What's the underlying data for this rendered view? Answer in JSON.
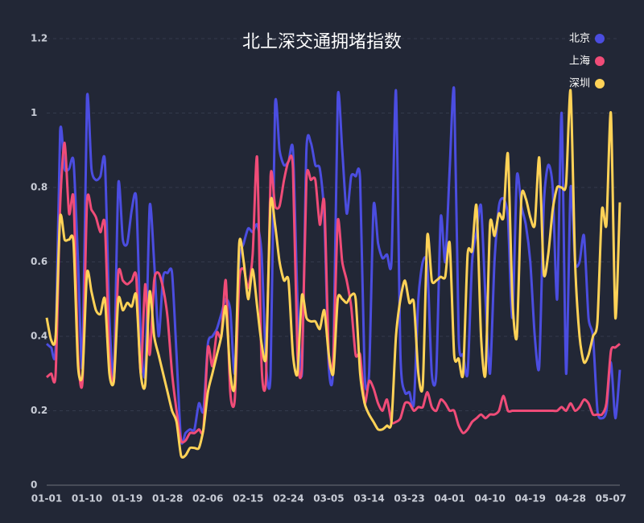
{
  "chart_data": {
    "type": "line",
    "title": "北上深交通拥堵指数",
    "categories": [
      "01-01",
      null,
      null,
      null,
      null,
      null,
      null,
      null,
      null,
      "01-10",
      null,
      null,
      null,
      null,
      null,
      null,
      null,
      null,
      "01-19",
      null,
      null,
      null,
      null,
      null,
      null,
      null,
      null,
      "01-28",
      null,
      null,
      null,
      null,
      null,
      null,
      null,
      null,
      "02-06",
      null,
      null,
      null,
      null,
      null,
      null,
      null,
      null,
      "02-15",
      null,
      null,
      null,
      null,
      null,
      null,
      null,
      null,
      "02-24",
      null,
      null,
      null,
      null,
      null,
      null,
      null,
      null,
      "03-05",
      null,
      null,
      null,
      null,
      null,
      null,
      null,
      null,
      "03-14",
      null,
      null,
      null,
      null,
      null,
      null,
      null,
      null,
      "03-23",
      null,
      null,
      null,
      null,
      null,
      null,
      null,
      null,
      "04-01",
      null,
      null,
      null,
      null,
      null,
      null,
      null,
      null,
      "04-10",
      null,
      null,
      null,
      null,
      null,
      null,
      null,
      null,
      "04-19",
      null,
      null,
      null,
      null,
      null,
      null,
      null,
      null,
      "04-28",
      null,
      null,
      null,
      null,
      null,
      null,
      null,
      null,
      "05-07",
      null,
      null
    ],
    "series": [
      {
        "name": "北京",
        "color": "#4b4de0",
        "values": [
          0.38,
          0.37,
          0.37,
          0.95,
          0.85,
          0.85,
          0.87,
          0.6,
          0.32,
          1.04,
          0.85,
          0.82,
          0.83,
          0.87,
          0.45,
          0.3,
          0.81,
          0.66,
          0.65,
          0.74,
          0.77,
          0.4,
          0.3,
          0.75,
          0.6,
          0.4,
          0.56,
          0.57,
          0.57,
          0.35,
          0.12,
          0.14,
          0.15,
          0.15,
          0.22,
          0.2,
          0.38,
          0.4,
          0.42,
          0.46,
          0.5,
          0.47,
          0.3,
          0.6,
          0.65,
          0.69,
          0.68,
          0.7,
          0.62,
          0.32,
          0.3,
          1.02,
          0.9,
          0.86,
          0.87,
          0.9,
          0.5,
          0.3,
          0.9,
          0.92,
          0.86,
          0.85,
          0.72,
          0.32,
          0.32,
          1.04,
          0.9,
          0.73,
          0.83,
          0.83,
          0.82,
          0.3,
          0.3,
          0.75,
          0.65,
          0.61,
          0.62,
          0.6,
          1.06,
          0.35,
          0.25,
          0.25,
          0.22,
          0.5,
          0.6,
          0.59,
          0.3,
          0.3,
          0.72,
          0.6,
          0.85,
          1.06,
          0.4,
          0.35,
          0.3,
          0.6,
          0.68,
          0.75,
          0.5,
          0.3,
          0.6,
          0.75,
          0.77,
          0.72,
          0.45,
          0.83,
          0.75,
          0.7,
          0.6,
          0.4,
          0.32,
          0.75,
          0.86,
          0.8,
          0.5,
          1.0,
          0.3,
          0.8,
          0.6,
          0.6,
          0.67,
          0.45,
          0.4,
          0.2,
          0.18,
          0.2,
          0.33,
          0.18,
          0.31
        ]
      },
      {
        "name": "上海",
        "color": "#f04c78",
        "values": [
          0.29,
          0.3,
          0.3,
          0.75,
          0.92,
          0.73,
          0.77,
          0.35,
          0.28,
          0.76,
          0.74,
          0.72,
          0.68,
          0.7,
          0.35,
          0.28,
          0.57,
          0.55,
          0.54,
          0.55,
          0.56,
          0.3,
          0.54,
          0.35,
          0.55,
          0.57,
          0.53,
          0.45,
          0.3,
          0.2,
          0.12,
          0.12,
          0.14,
          0.14,
          0.15,
          0.15,
          0.37,
          0.32,
          0.41,
          0.4,
          0.55,
          0.25,
          0.23,
          0.55,
          0.58,
          0.53,
          0.62,
          0.88,
          0.32,
          0.29,
          0.83,
          0.75,
          0.75,
          0.82,
          0.87,
          0.85,
          0.35,
          0.32,
          0.82,
          0.82,
          0.82,
          0.7,
          0.76,
          0.35,
          0.34,
          0.71,
          0.6,
          0.55,
          0.48,
          0.35,
          0.35,
          0.22,
          0.28,
          0.26,
          0.22,
          0.2,
          0.23,
          0.17,
          0.17,
          0.18,
          0.22,
          0.22,
          0.2,
          0.21,
          0.21,
          0.25,
          0.21,
          0.2,
          0.23,
          0.22,
          0.2,
          0.2,
          0.16,
          0.14,
          0.15,
          0.17,
          0.18,
          0.19,
          0.18,
          0.19,
          0.19,
          0.2,
          0.24,
          0.2,
          0.2,
          0.2,
          0.2,
          0.2,
          0.2,
          0.2,
          0.2,
          0.2,
          0.2,
          0.2,
          0.2,
          0.21,
          0.2,
          0.22,
          0.2,
          0.21,
          0.23,
          0.22,
          0.19,
          0.19,
          0.19,
          0.22,
          0.36,
          0.37,
          0.38
        ]
      },
      {
        "name": "深圳",
        "color": "#ffd257",
        "values": [
          0.45,
          0.39,
          0.4,
          0.72,
          0.66,
          0.66,
          0.65,
          0.32,
          0.3,
          0.57,
          0.52,
          0.47,
          0.46,
          0.5,
          0.3,
          0.28,
          0.5,
          0.47,
          0.49,
          0.48,
          0.51,
          0.3,
          0.27,
          0.52,
          0.4,
          0.35,
          0.3,
          0.25,
          0.2,
          0.17,
          0.08,
          0.08,
          0.1,
          0.1,
          0.1,
          0.15,
          0.25,
          0.3,
          0.35,
          0.4,
          0.48,
          0.3,
          0.27,
          0.65,
          0.6,
          0.5,
          0.58,
          0.48,
          0.38,
          0.35,
          0.76,
          0.7,
          0.6,
          0.55,
          0.55,
          0.35,
          0.3,
          0.51,
          0.45,
          0.44,
          0.44,
          0.42,
          0.47,
          0.35,
          0.3,
          0.5,
          0.5,
          0.49,
          0.51,
          0.5,
          0.3,
          0.22,
          0.19,
          0.17,
          0.15,
          0.15,
          0.16,
          0.17,
          0.4,
          0.5,
          0.55,
          0.49,
          0.49,
          0.3,
          0.27,
          0.67,
          0.55,
          0.55,
          0.56,
          0.56,
          0.65,
          0.35,
          0.34,
          0.3,
          0.62,
          0.63,
          0.75,
          0.4,
          0.3,
          0.7,
          0.67,
          0.73,
          0.72,
          0.89,
          0.5,
          0.4,
          0.77,
          0.77,
          0.72,
          0.7,
          0.88,
          0.57,
          0.62,
          0.74,
          0.8,
          0.8,
          0.81,
          1.06,
          0.6,
          0.4,
          0.33,
          0.35,
          0.4,
          0.44,
          0.74,
          0.7,
          1.0,
          0.45,
          0.76
        ]
      }
    ],
    "ylim": [
      0,
      1.2
    ],
    "yticks": [
      0,
      0.2,
      0.4,
      0.6,
      0.8,
      1,
      1.2
    ],
    "grid": true,
    "legend": "top-right"
  }
}
